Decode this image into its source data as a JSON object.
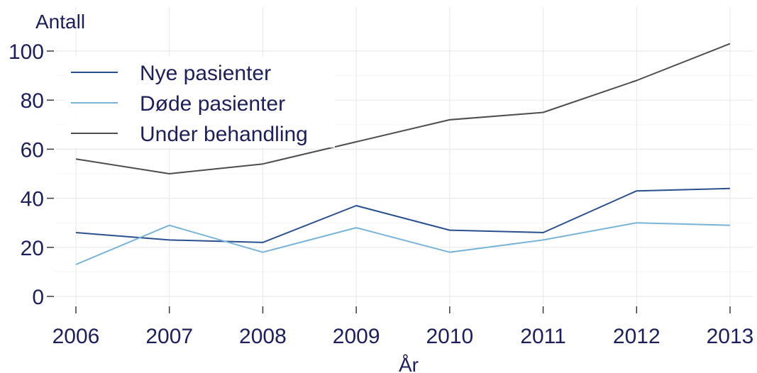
{
  "chart_data": {
    "type": "line",
    "ylabel": "Antall",
    "xlabel": "År",
    "x": [
      2006,
      2007,
      2008,
      2009,
      2010,
      2011,
      2012,
      2013
    ],
    "ylim": [
      0,
      100
    ],
    "yticks": [
      0,
      20,
      40,
      60,
      80,
      100
    ],
    "grid": true,
    "legend": "top-left",
    "series": [
      {
        "name": "Nye pasienter",
        "color": "#2a4f8f",
        "values": [
          26,
          23,
          22,
          37,
          27,
          26,
          43,
          44
        ]
      },
      {
        "name": "Døde pasienter",
        "color": "#78b3d8",
        "values": [
          13,
          29,
          18,
          28,
          18,
          23,
          30,
          29
        ]
      },
      {
        "name": "Under behandling",
        "color": "#4d4d4d",
        "values": [
          56,
          50,
          54,
          63,
          72,
          75,
          88,
          103
        ]
      }
    ]
  }
}
